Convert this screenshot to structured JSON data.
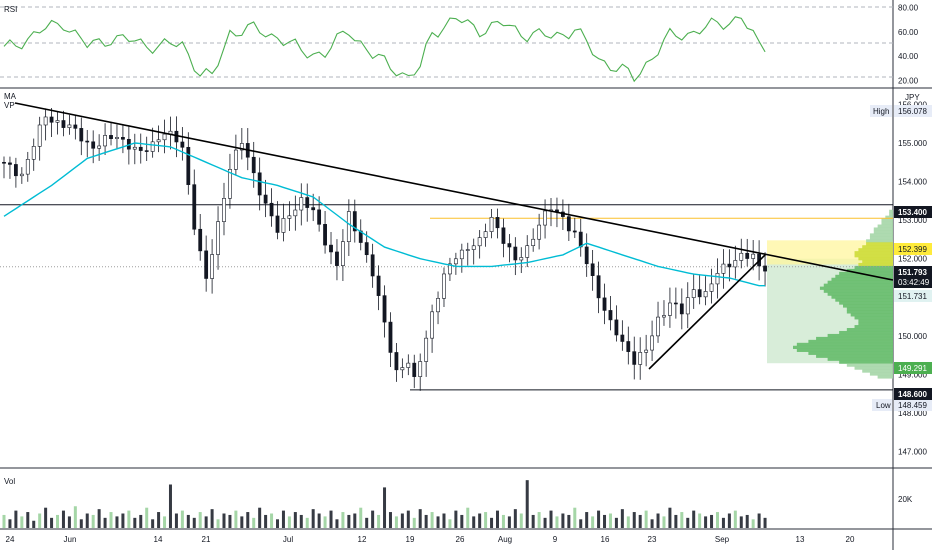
{
  "chart_data": {
    "type": "candlestick",
    "symbol_currency": "JPY",
    "indicators": {
      "rsi_label": "RSI",
      "ma_label": "MA",
      "vp_label": "VP",
      "vol_label": "Vol"
    },
    "price_axis": {
      "ticks": [
        "156.000",
        "155.000",
        "154.000",
        "153.000",
        "152.000",
        "151.000",
        "150.000",
        "149.000",
        "148.000",
        "147.000"
      ],
      "range": [
        146.6,
        156.4
      ]
    },
    "rsi_axis": {
      "ticks": [
        "80.00",
        "60.00",
        "40.00",
        "20.00"
      ],
      "range": [
        14,
        86
      ]
    },
    "volume_axis": {
      "ticks": [
        "20K"
      ],
      "range": [
        0,
        40000
      ]
    },
    "time_axis": {
      "ticks": [
        "24",
        "Jun",
        "14",
        "21",
        "Jul",
        "12",
        "19",
        "26",
        "Aug",
        "9",
        "16",
        "23",
        "Sep",
        "13",
        "20"
      ]
    },
    "price_labels": {
      "high_label": "High",
      "high_value": "156.078",
      "low_label": "Low",
      "low_value": "148.459",
      "level_153": "153.400",
      "level_152": "152.399",
      "last_price": "151.793",
      "countdown": "03:42:49",
      "ma_value": "151.731",
      "vp_low": "149.291",
      "level_148": "148.600"
    },
    "levels": {
      "resistance": 153.4,
      "support": 148.6,
      "poc": 153.05,
      "vah": 152.399,
      "val": 149.291,
      "last": 151.793
    },
    "price_path": [
      [
        0,
        154.5
      ],
      [
        4,
        154.2
      ],
      [
        8,
        155.7
      ],
      [
        12,
        155.4
      ],
      [
        16,
        154.9
      ],
      [
        20,
        155.2
      ],
      [
        24,
        154.7
      ],
      [
        28,
        155.3
      ],
      [
        31,
        154.9
      ],
      [
        33,
        152.9
      ],
      [
        35,
        151.4
      ],
      [
        37,
        152.9
      ],
      [
        39,
        154.4
      ],
      [
        41,
        155.0
      ],
      [
        43,
        154.2
      ],
      [
        45,
        153.4
      ],
      [
        47,
        152.7
      ],
      [
        49,
        153.2
      ],
      [
        51,
        153.5
      ],
      [
        53,
        153.2
      ],
      [
        55,
        152.5
      ],
      [
        57,
        151.8
      ],
      [
        59,
        153.1
      ],
      [
        61,
        152.5
      ],
      [
        63,
        151.6
      ],
      [
        65,
        150.3
      ],
      [
        67,
        149.1
      ],
      [
        69,
        149.3
      ],
      [
        70,
        148.8
      ],
      [
        71,
        149.4
      ],
      [
        73,
        150.6
      ],
      [
        75,
        151.5
      ],
      [
        77,
        152.1
      ],
      [
        79,
        152.3
      ],
      [
        81,
        152.4
      ],
      [
        83,
        153.1
      ],
      [
        85,
        152.5
      ],
      [
        87,
        151.9
      ],
      [
        89,
        152.3
      ],
      [
        91,
        152.9
      ],
      [
        93,
        153.3
      ],
      [
        95,
        153.1
      ],
      [
        97,
        152.6
      ],
      [
        99,
        151.9
      ],
      [
        101,
        151.1
      ],
      [
        103,
        150.3
      ],
      [
        105,
        149.8
      ],
      [
        107,
        149.4
      ],
      [
        109,
        149.6
      ],
      [
        111,
        150.4
      ],
      [
        113,
        150.9
      ],
      [
        115,
        150.6
      ],
      [
        117,
        151.2
      ],
      [
        119,
        151.1
      ],
      [
        121,
        151.6
      ],
      [
        123,
        151.9
      ],
      [
        125,
        152.1
      ],
      [
        127,
        152.0
      ],
      [
        128,
        151.8
      ]
    ],
    "ma_path": [
      [
        0,
        153.1
      ],
      [
        8,
        153.9
      ],
      [
        14,
        154.6
      ],
      [
        22,
        155.0
      ],
      [
        28,
        154.9
      ],
      [
        34,
        154.5
      ],
      [
        40,
        154.1
      ],
      [
        46,
        153.9
      ],
      [
        52,
        153.6
      ],
      [
        58,
        152.9
      ],
      [
        64,
        152.3
      ],
      [
        70,
        152.0
      ],
      [
        76,
        151.8
      ],
      [
        82,
        151.8
      ],
      [
        88,
        151.9
      ],
      [
        94,
        152.1
      ],
      [
        98,
        152.4
      ],
      [
        102,
        152.2
      ],
      [
        106,
        152.0
      ],
      [
        110,
        151.8
      ],
      [
        116,
        151.6
      ],
      [
        122,
        151.5
      ],
      [
        127,
        151.3
      ]
    ],
    "rsi_path": [
      [
        0,
        45
      ],
      [
        6,
        60
      ],
      [
        10,
        68
      ],
      [
        14,
        48
      ],
      [
        18,
        55
      ],
      [
        22,
        52
      ],
      [
        26,
        48
      ],
      [
        30,
        50
      ],
      [
        33,
        26
      ],
      [
        35,
        22
      ],
      [
        38,
        60
      ],
      [
        42,
        62
      ],
      [
        46,
        56
      ],
      [
        50,
        44
      ],
      [
        54,
        42
      ],
      [
        58,
        62
      ],
      [
        62,
        40
      ],
      [
        66,
        30
      ],
      [
        68,
        22
      ],
      [
        70,
        30
      ],
      [
        72,
        60
      ],
      [
        76,
        70
      ],
      [
        80,
        62
      ],
      [
        84,
        66
      ],
      [
        88,
        58
      ],
      [
        92,
        56
      ],
      [
        96,
        62
      ],
      [
        100,
        38
      ],
      [
        104,
        28
      ],
      [
        106,
        22
      ],
      [
        108,
        34
      ],
      [
        112,
        56
      ],
      [
        116,
        60
      ],
      [
        120,
        66
      ],
      [
        124,
        72
      ],
      [
        127,
        48
      ]
    ],
    "volume_values": [
      9,
      6,
      12,
      8,
      11,
      5,
      10,
      14,
      7,
      9,
      12,
      8,
      15,
      6,
      10,
      9,
      13,
      7,
      11,
      8,
      10,
      12,
      7,
      9,
      14,
      6,
      11,
      8,
      30,
      10,
      12,
      9,
      7,
      11,
      8,
      13,
      6,
      10,
      9,
      12,
      8,
      11,
      7,
      14,
      9,
      10,
      6,
      12,
      8,
      11,
      9,
      7,
      13,
      10,
      8,
      12,
      6,
      11,
      9,
      10,
      14,
      7,
      12,
      9,
      28,
      11,
      8,
      10,
      12,
      7,
      13,
      9,
      11,
      8,
      10,
      6,
      12,
      9,
      14,
      8,
      10,
      11,
      7,
      12,
      9,
      8,
      13,
      10,
      33,
      9,
      11,
      7,
      12,
      8,
      10,
      9,
      14,
      6,
      11,
      8,
      12,
      9,
      10,
      7,
      13,
      8,
      11,
      9,
      12,
      6,
      10,
      8,
      14,
      9,
      11,
      7,
      12,
      10,
      8,
      9,
      11,
      7,
      10,
      12,
      8,
      9,
      6,
      10,
      7
    ],
    "profile_values": [
      0,
      0,
      0,
      1,
      1,
      2,
      3,
      3,
      4,
      5,
      5,
      6,
      6,
      7,
      7,
      8,
      9,
      10,
      10,
      9,
      8,
      9,
      10,
      12,
      14,
      15,
      16,
      17,
      18,
      19,
      18,
      17,
      16,
      15,
      14,
      13,
      12,
      12,
      11,
      10,
      9,
      9,
      10,
      12,
      14,
      17,
      20,
      22,
      25,
      26,
      25,
      22,
      20,
      17,
      14,
      12,
      10,
      8,
      6,
      4
    ]
  }
}
